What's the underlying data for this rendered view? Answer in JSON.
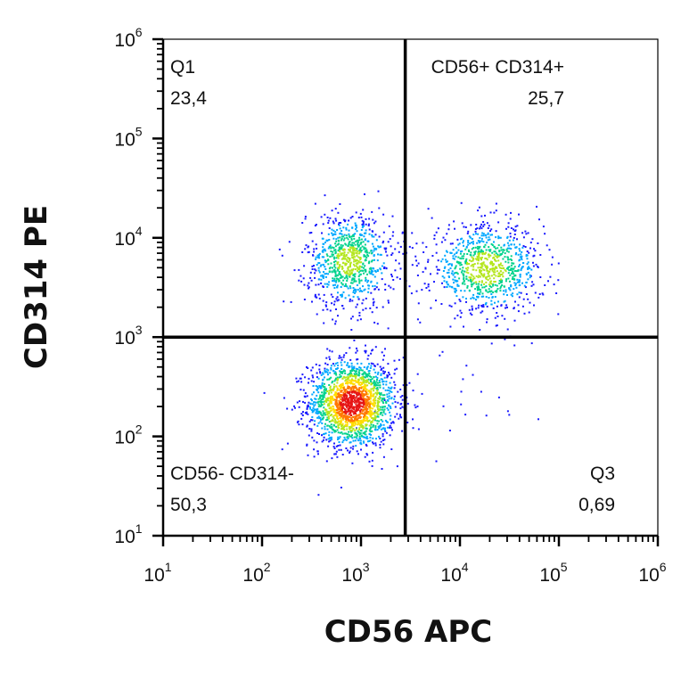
{
  "chart_data": {
    "type": "scatter",
    "subtype": "flow-cytometry-density-dot-plot",
    "xlabel": "CD56 APC",
    "ylabel": "CD314 PE",
    "x_scale": "log",
    "y_scale": "log",
    "xlim": [
      10,
      1000000
    ],
    "ylim": [
      10,
      1000000
    ],
    "x_ticks": [
      {
        "base": "10",
        "exp": "1"
      },
      {
        "base": "10",
        "exp": "2"
      },
      {
        "base": "10",
        "exp": "3"
      },
      {
        "base": "10",
        "exp": "4"
      },
      {
        "base": "10",
        "exp": "5"
      },
      {
        "base": "10",
        "exp": "6"
      }
    ],
    "y_ticks": [
      {
        "base": "10",
        "exp": "1"
      },
      {
        "base": "10",
        "exp": "2"
      },
      {
        "base": "10",
        "exp": "3"
      },
      {
        "base": "10",
        "exp": "4"
      },
      {
        "base": "10",
        "exp": "5"
      },
      {
        "base": "10",
        "exp": "6"
      }
    ],
    "gate": {
      "x": 2800,
      "y": 1000
    },
    "quadrants": [
      {
        "id": "upper-left",
        "name": "Q1",
        "value": "23,4"
      },
      {
        "id": "upper-right",
        "name": "CD56+ CD314+",
        "value": "25,7"
      },
      {
        "id": "lower-left",
        "name": "CD56- CD314-",
        "value": "50,3"
      },
      {
        "id": "lower-right",
        "name": "Q3",
        "value": "0,69"
      }
    ],
    "populations": [
      {
        "name": "CD56- CD314-",
        "center_x": 800,
        "center_y": 220,
        "spread_x_log": 0.22,
        "spread_y_log": 0.22,
        "share": 0.503
      },
      {
        "name": "Q1",
        "center_x": 750,
        "center_y": 6000,
        "spread_x_log": 0.22,
        "spread_y_log": 0.24,
        "share": 0.234
      },
      {
        "name": "CD56+ CD314+",
        "center_x": 18000,
        "center_y": 5000,
        "spread_x_log": 0.28,
        "spread_y_log": 0.22,
        "share": 0.257
      },
      {
        "name": "Q3",
        "center_x": 9000,
        "center_y": 200,
        "spread_x_log": 0.5,
        "spread_y_log": 0.3,
        "share": 0.0069
      }
    ],
    "color_scale": [
      "#1a1aff",
      "#00a8ff",
      "#00d28c",
      "#b4e61e",
      "#ffdc00",
      "#ff7800",
      "#e61414"
    ],
    "grid": false,
    "legend": "none"
  }
}
